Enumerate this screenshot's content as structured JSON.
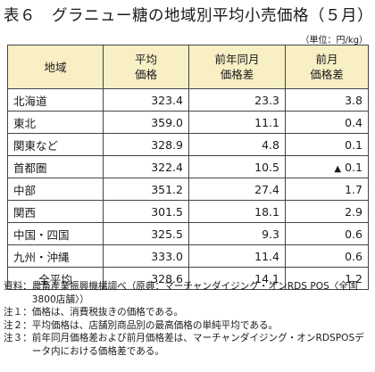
{
  "title": "表６　グラニュー糖の地域別平均小売価格（５月）",
  "unit": "（単位：円/kg）",
  "headers": {
    "region": "地域",
    "avg_price": [
      "平均",
      "価格"
    ],
    "yoy_diff": [
      "前年同月",
      "価格差"
    ],
    "mom_diff": [
      "前月",
      "価格差"
    ]
  },
  "rows": [
    {
      "region": "北海道",
      "avg": "323.4",
      "yoy": "23.3",
      "mom": "3.8",
      "mom_negative": false
    },
    {
      "region": "東北",
      "avg": "359.0",
      "yoy": "11.1",
      "mom": "0.4",
      "mom_negative": false
    },
    {
      "region": "関東など",
      "avg": "328.9",
      "yoy": "4.8",
      "mom": "0.1",
      "mom_negative": false
    },
    {
      "region": "首都圏",
      "avg": "322.4",
      "yoy": "10.5",
      "mom": "0.1",
      "mom_negative": true
    },
    {
      "region": "中部",
      "avg": "351.2",
      "yoy": "27.4",
      "mom": "1.7",
      "mom_negative": false
    },
    {
      "region": "関西",
      "avg": "301.5",
      "yoy": "18.1",
      "mom": "2.9",
      "mom_negative": false
    },
    {
      "region": "中国・四国",
      "avg": "325.5",
      "yoy": "9.3",
      "mom": "0.6",
      "mom_negative": false
    },
    {
      "region": "九州・沖縄",
      "avg": "333.0",
      "yoy": "11.4",
      "mom": "0.6",
      "mom_negative": false
    }
  ],
  "total": {
    "region": "全平均",
    "avg": "328.6",
    "yoy": "14.1",
    "mom": "1.2"
  },
  "negative_marker": "▲",
  "notes": [
    {
      "label": "資料：",
      "text": "農畜産業振興機構調べ（原典：マーチャンダイジング・オンRDS POS〈全国3800店舗〉）"
    },
    {
      "label": "注１：",
      "text": "価格は、消費税抜きの価格である。"
    },
    {
      "label": "注２：",
      "text": "平均価格は、店舗別商品別の最高価格の単純平均である。"
    },
    {
      "label": "注３：",
      "text": "前年同月価格差および前月価格差は、マーチャンダイジング・オンRDSPOSデータ内における価格差である。"
    }
  ],
  "colors": {
    "header_bg": "#f8efc4",
    "border": "#444444"
  }
}
